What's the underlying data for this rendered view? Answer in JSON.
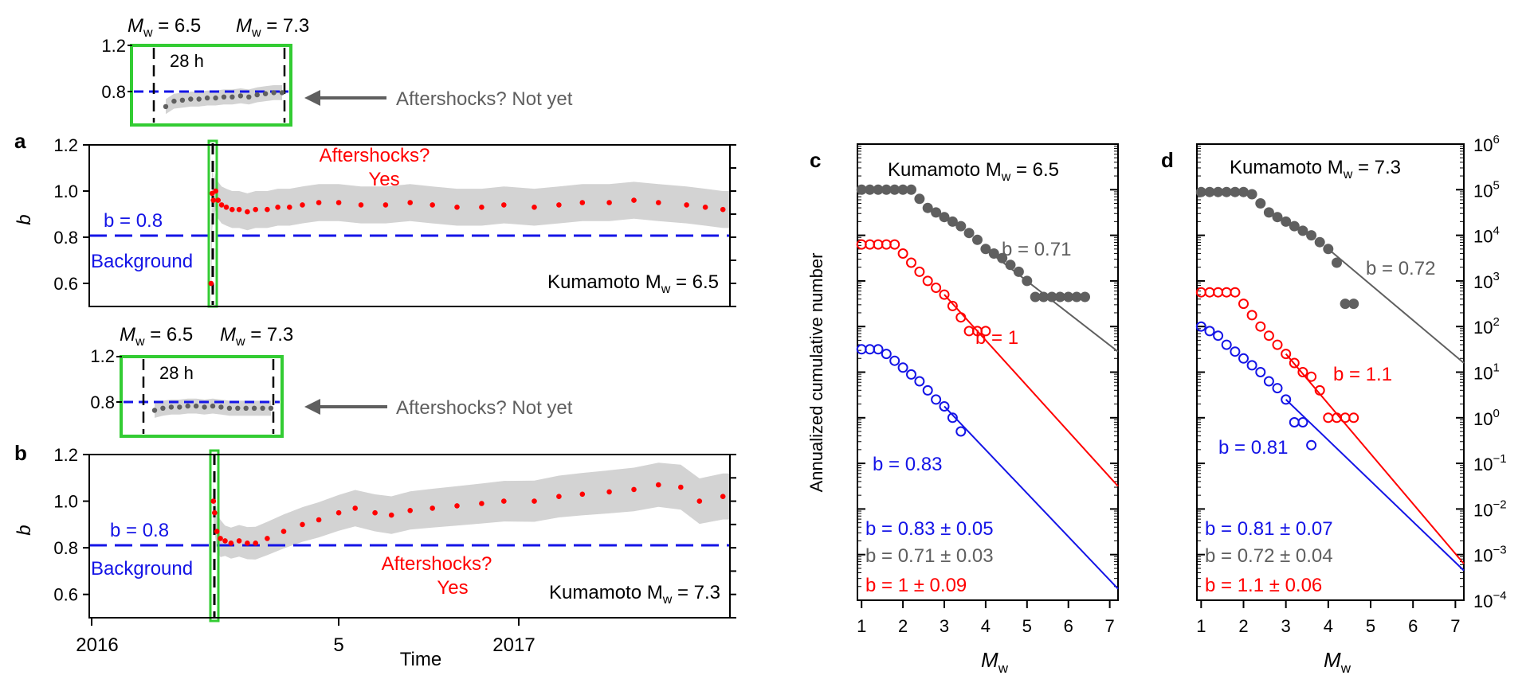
{
  "colors": {
    "gray_points": "#5f5f5f",
    "band": "#d3d3d3",
    "red": "#ff0000",
    "blue": "#1414e6",
    "green_box": "#33cc33",
    "ref_line": "#1414e6",
    "black": "#000000"
  },
  "panels": {
    "a": {
      "letter": "a",
      "ylabel": "b",
      "yticks": [
        "0.6",
        "0.8",
        "1.0",
        "1.2"
      ],
      "b_ref_label": "b = 0.8",
      "background_label": "Background",
      "aftershock_label": "Aftershocks?",
      "aftershock_answer": "Yes",
      "event_label": "Kumamoto M",
      "event_sub": "w",
      "event_value": " = 6.5"
    },
    "b": {
      "letter": "b",
      "ylabel": "b",
      "yticks": [
        "0.6",
        "0.8",
        "1.0",
        "1.2"
      ],
      "b_ref_label": "b = 0.8",
      "background_label": "Background",
      "aftershock_label": "Aftershocks?",
      "aftershock_answer": "Yes",
      "event_label": "Kumamoto M",
      "event_sub": "w",
      "event_value": " = 7.3",
      "xticks": [
        "2016",
        "5",
        "2017"
      ],
      "xlabel": "Time"
    },
    "inset_a": {
      "mw1_prefix": "M",
      "mw1_sub": "w",
      "mw1_value": " = 6.5",
      "mw2_prefix": "M",
      "mw2_sub": "w",
      "mw2_value": " = 7.3",
      "duration": "28 h",
      "yticks": [
        "0.8",
        "1.2"
      ],
      "callout": "Aftershocks? Not yet"
    },
    "inset_b": {
      "mw1_prefix": "M",
      "mw1_sub": "w",
      "mw1_value": " = 6.5",
      "mw2_prefix": "M",
      "mw2_sub": "w",
      "mw2_value": " = 7.3",
      "duration": "28 h",
      "yticks": [
        "0.8",
        "1.2"
      ],
      "callout": "Aftershocks? Not yet"
    },
    "c": {
      "letter": "c",
      "title_prefix": "Kumamoto M",
      "title_sub": "w",
      "title_value": " = 6.5",
      "ylabel": "Annualized cumulative number",
      "xlabel_prefix": "M",
      "xlabel_sub": "w",
      "xticks": [
        "1",
        "2",
        "3",
        "4",
        "5",
        "6",
        "7"
      ],
      "b_gray": "b = 0.71",
      "b_red": "b = 1",
      "b_blue": "b = 0.83",
      "summary_blue": "b = 0.83 ± 0.05",
      "summary_gray": "b = 0.71 ± 0.03",
      "summary_red": "b = 1 ± 0.09"
    },
    "d": {
      "letter": "d",
      "title_prefix": "Kumamoto M",
      "title_sub": "w",
      "title_value": " = 7.3",
      "xlabel_prefix": "M",
      "xlabel_sub": "w",
      "xticks": [
        "1",
        "2",
        "3",
        "4",
        "5",
        "6",
        "7"
      ],
      "yticks": [
        "10",
        "10",
        "10",
        "10",
        "10",
        "10",
        "10",
        "10",
        "10",
        "10",
        "10"
      ],
      "yexp": [
        "6",
        "5",
        "4",
        "3",
        "2",
        "1",
        "0",
        "−1",
        "−2",
        "−3",
        "−4"
      ],
      "b_gray": "b = 0.72",
      "b_red": "b = 1.1",
      "b_blue": "b = 0.81",
      "summary_blue": "b = 0.81 ± 0.07",
      "summary_gray": "b = 0.72 ± 0.04",
      "summary_red": "b = 1.1 ± 0.06"
    }
  },
  "chart_data": [
    {
      "panel": "a",
      "type": "scatter",
      "ylim": [
        0.5,
        1.2
      ],
      "xlim": [
        "2016-01-01",
        "2017-07-01"
      ],
      "reference_line": 0.8,
      "series": [
        {
          "x": [
            "2016-04-14",
            "2016-04-15",
            "2016-04-16",
            "2016-04-18",
            "2016-04-20",
            "2016-04-23",
            "2016-04-27",
            "2016-05-02",
            "2016-05-08",
            "2016-05-15",
            "2016-05-22",
            "2016-06-01",
            "2016-06-10",
            "2016-06-20",
            "2016-07-01",
            "2016-07-15",
            "2016-08-01",
            "2016-08-20",
            "2016-09-10",
            "2016-10-01",
            "2016-10-20",
            "2016-11-10",
            "2016-12-01",
            "2016-12-20",
            "2017-01-15",
            "2017-02-05",
            "2017-02-25",
            "2017-03-20",
            "2017-04-10",
            "2017-05-01",
            "2017-05-25",
            "2017-06-10",
            "2017-06-25"
          ],
          "y": [
            0.6,
            0.99,
            0.96,
            1.0,
            0.96,
            0.94,
            0.93,
            0.92,
            0.92,
            0.91,
            0.92,
            0.92,
            0.93,
            0.93,
            0.94,
            0.95,
            0.95,
            0.94,
            0.94,
            0.95,
            0.94,
            0.93,
            0.93,
            0.94,
            0.93,
            0.94,
            0.95,
            0.95,
            0.96,
            0.95,
            0.94,
            0.93,
            0.92
          ]
        }
      ]
    },
    {
      "panel": "b",
      "type": "scatter",
      "ylim": [
        0.5,
        1.2
      ],
      "xlim": [
        "2016-01-01",
        "2017-07-01"
      ],
      "reference_line": 0.8,
      "series": [
        {
          "x": [
            "2016-04-16",
            "2016-04-17",
            "2016-04-19",
            "2016-04-22",
            "2016-04-26",
            "2016-05-01",
            "2016-05-08",
            "2016-05-15",
            "2016-05-22",
            "2016-06-01",
            "2016-06-15",
            "2016-07-01",
            "2016-07-15",
            "2016-08-01",
            "2016-08-15",
            "2016-09-01",
            "2016-09-15",
            "2016-10-01",
            "2016-10-20",
            "2016-11-10",
            "2016-12-01",
            "2016-12-20",
            "2017-01-15",
            "2017-02-05",
            "2017-02-25",
            "2017-03-20",
            "2017-04-10",
            "2017-05-01",
            "2017-05-20",
            "2017-06-05",
            "2017-06-25"
          ],
          "y": [
            1.0,
            0.95,
            0.87,
            0.84,
            0.83,
            0.82,
            0.83,
            0.82,
            0.82,
            0.84,
            0.87,
            0.9,
            0.92,
            0.95,
            0.97,
            0.95,
            0.94,
            0.96,
            0.97,
            0.98,
            0.99,
            1.0,
            1.0,
            1.02,
            1.03,
            1.04,
            1.05,
            1.07,
            1.06,
            1.0,
            1.02
          ]
        }
      ]
    },
    {
      "panel": "inset_a",
      "type": "scatter",
      "ylim": [
        0.5,
        1.2
      ],
      "reference_line": 0.8,
      "series": [
        {
          "x": [
            0,
            2,
            4,
            6,
            8,
            10,
            12,
            14,
            16,
            18,
            20,
            22,
            24,
            26,
            28
          ],
          "y": [
            0.65,
            0.7,
            0.71,
            0.72,
            0.72,
            0.73,
            0.73,
            0.74,
            0.74,
            0.75,
            0.74,
            0.76,
            0.77,
            0.78,
            0.78
          ]
        }
      ]
    },
    {
      "panel": "inset_b",
      "type": "scatter",
      "ylim": [
        0.5,
        1.2
      ],
      "reference_line": 0.8,
      "series": [
        {
          "x": [
            0,
            2,
            4,
            6,
            8,
            10,
            12,
            14,
            16,
            18,
            20,
            22,
            24,
            26,
            28
          ],
          "y": [
            0.72,
            0.74,
            0.75,
            0.75,
            0.76,
            0.76,
            0.75,
            0.76,
            0.75,
            0.74,
            0.74,
            0.74,
            0.74,
            0.74,
            0.74
          ]
        }
      ]
    },
    {
      "panel": "c",
      "type": "scatter",
      "xlim": [
        0.9,
        7.2
      ],
      "ylog10_range": [
        -4,
        6
      ],
      "series": [
        {
          "name": "b = 0.71",
          "x": [
            1.0,
            1.2,
            1.4,
            1.6,
            1.8,
            2.0,
            2.2,
            2.4,
            2.6,
            2.8,
            3.0,
            3.2,
            3.4,
            3.6,
            3.8,
            4.0,
            4.2,
            4.4,
            4.6,
            4.8,
            5.0,
            5.2,
            5.4,
            5.6,
            5.8,
            6.0,
            6.2,
            6.4
          ],
          "y_log10": [
            5.0,
            5.0,
            5.0,
            5.0,
            5.0,
            5.0,
            5.0,
            4.8,
            4.6,
            4.5,
            4.4,
            4.3,
            4.2,
            4.05,
            3.9,
            3.7,
            3.6,
            3.5,
            3.35,
            3.2,
            3.0,
            2.65,
            2.65,
            2.65,
            2.65,
            2.65,
            2.65,
            2.65
          ]
        },
        {
          "name": "b = 1",
          "x": [
            1.0,
            1.2,
            1.4,
            1.6,
            1.8,
            2.0,
            2.2,
            2.4,
            2.6,
            2.8,
            3.0,
            3.2,
            3.4,
            3.6,
            3.8,
            4.0
          ],
          "y_log10": [
            3.8,
            3.8,
            3.8,
            3.8,
            3.8,
            3.6,
            3.4,
            3.2,
            3.0,
            2.85,
            2.7,
            2.45,
            2.2,
            1.9,
            1.9,
            1.9
          ]
        },
        {
          "name": "b = 0.83",
          "x": [
            1.0,
            1.2,
            1.4,
            1.6,
            1.8,
            2.0,
            2.2,
            2.4,
            2.6,
            2.8,
            3.0,
            3.2,
            3.4
          ],
          "y_log10": [
            1.5,
            1.5,
            1.5,
            1.4,
            1.25,
            1.1,
            0.95,
            0.8,
            0.6,
            0.4,
            0.25,
            0.0,
            -0.3
          ]
        }
      ]
    },
    {
      "panel": "d",
      "type": "scatter",
      "xlim": [
        0.9,
        7.2
      ],
      "ylog10_range": [
        -4,
        6
      ],
      "series": [
        {
          "name": "b = 0.72",
          "x": [
            1.0,
            1.2,
            1.4,
            1.6,
            1.8,
            2.0,
            2.2,
            2.4,
            2.6,
            2.8,
            3.0,
            3.2,
            3.4,
            3.6,
            3.8,
            4.0,
            4.2,
            4.4,
            4.6
          ],
          "y_log10": [
            4.95,
            4.95,
            4.95,
            4.95,
            4.95,
            4.95,
            4.9,
            4.7,
            4.5,
            4.4,
            4.3,
            4.2,
            4.1,
            4.0,
            3.85,
            3.7,
            3.4,
            2.5,
            2.5
          ]
        },
        {
          "name": "b = 1.1",
          "x": [
            1.0,
            1.2,
            1.4,
            1.6,
            1.8,
            2.0,
            2.2,
            2.4,
            2.6,
            2.8,
            3.0,
            3.2,
            3.4,
            3.6,
            3.8,
            4.0,
            4.2,
            4.4,
            4.6
          ],
          "y_log10": [
            2.75,
            2.75,
            2.75,
            2.75,
            2.75,
            2.5,
            2.25,
            2.0,
            1.8,
            1.6,
            1.4,
            1.2,
            1.0,
            0.9,
            0.6,
            0.0,
            0.0,
            0.0,
            0.0
          ]
        },
        {
          "name": "b = 0.81",
          "x": [
            1.0,
            1.2,
            1.4,
            1.6,
            1.8,
            2.0,
            2.2,
            2.4,
            2.6,
            2.8,
            3.0,
            3.2,
            3.4,
            3.6
          ],
          "y_log10": [
            2.0,
            1.9,
            1.8,
            1.6,
            1.45,
            1.3,
            1.15,
            1.0,
            0.8,
            0.65,
            0.4,
            -0.1,
            -0.1,
            -0.6
          ]
        }
      ]
    }
  ]
}
